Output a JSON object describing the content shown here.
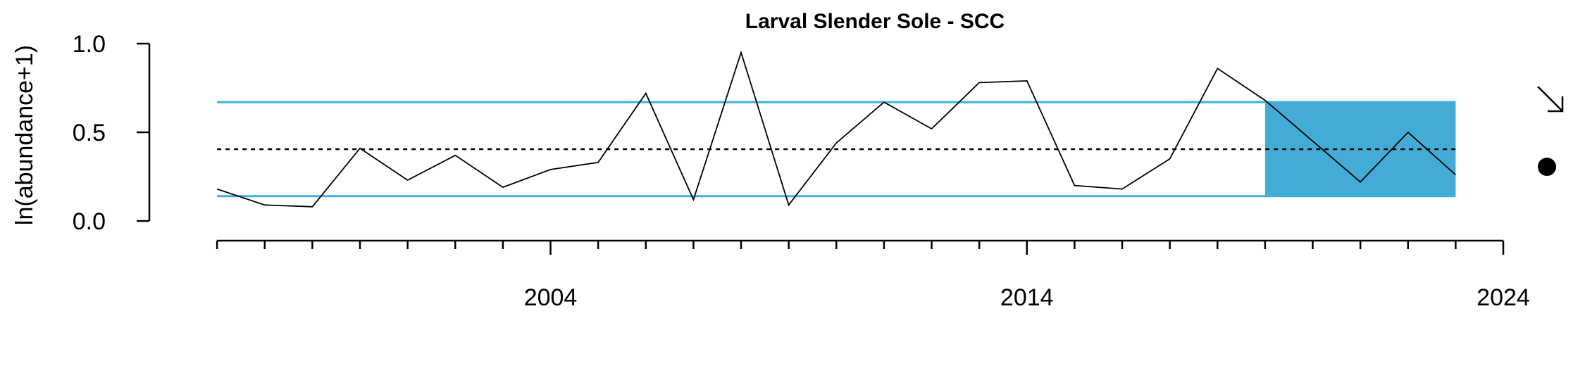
{
  "chart_data": {
    "type": "line",
    "title": "Larval Slender Sole - SCC",
    "xlabel": "",
    "ylabel": "ln(abundance+1)",
    "x": [
      1997,
      1998,
      1999,
      2000,
      2001,
      2002,
      2003,
      2004,
      2005,
      2006,
      2007,
      2008,
      2009,
      2010,
      2011,
      2012,
      2013,
      2014,
      2015,
      2016,
      2017,
      2018,
      2019,
      2020,
      2021,
      2022,
      2023
    ],
    "values": [
      0.18,
      0.09,
      0.08,
      0.41,
      0.23,
      0.37,
      0.19,
      0.29,
      0.33,
      0.72,
      0.12,
      0.95,
      0.09,
      0.44,
      0.67,
      0.52,
      0.78,
      0.79,
      0.2,
      0.18,
      0.35,
      0.86,
      0.68,
      0.45,
      0.22,
      0.5,
      0.26
    ],
    "xlim": [
      1996.85,
      2024
    ],
    "ylim": [
      0,
      1
    ],
    "x_ticks_major": [
      {
        "value": 2004,
        "label": "2004"
      },
      {
        "value": 2014,
        "label": "2014"
      },
      {
        "value": 2024,
        "label": "2024"
      }
    ],
    "x_ticks_minor": [
      1997,
      1998,
      1999,
      2000,
      2001,
      2002,
      2003,
      2005,
      2006,
      2007,
      2008,
      2009,
      2010,
      2011,
      2012,
      2013,
      2015,
      2016,
      2017,
      2018,
      2019,
      2020,
      2021,
      2022,
      2023
    ],
    "y_ticks": [
      {
        "value": 0.0,
        "label": "0.0"
      },
      {
        "value": 0.5,
        "label": "0.5"
      },
      {
        "value": 1.0,
        "label": "1.0"
      }
    ],
    "mean": 0.405,
    "upper_sd": 0.67,
    "lower_sd": 0.14,
    "recent_window": [
      2019,
      2023
    ],
    "trend_indicator": "decreasing-arrow",
    "mean_indicator": "filled-circle",
    "colors": {
      "line": "#000000",
      "sd_lines": "#3fb0d6",
      "recent_fill": "#42acd7",
      "mean_line": "#000000"
    }
  }
}
